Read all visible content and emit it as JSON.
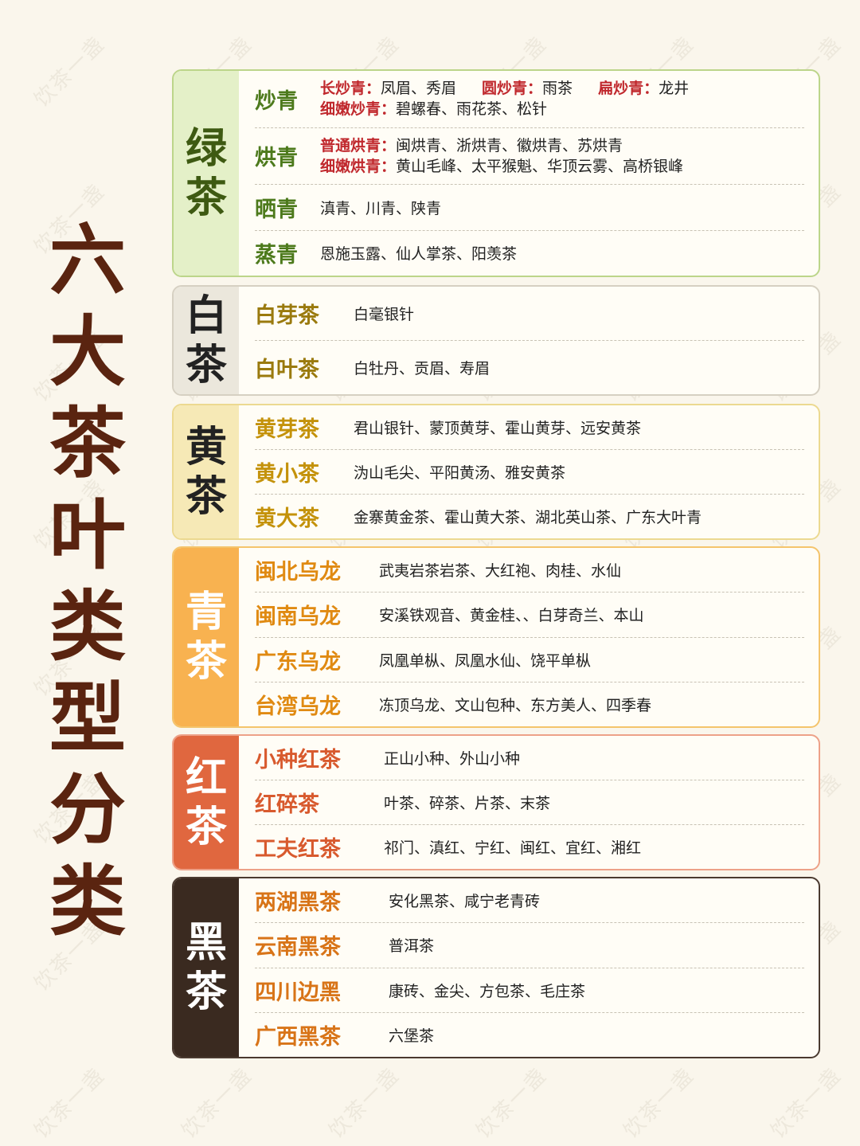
{
  "title": [
    "六",
    "大",
    "茶",
    "叶",
    "类",
    "型",
    "分",
    "类"
  ],
  "watermark": "饮茶一盏",
  "green": {
    "label": [
      "绿",
      "茶"
    ],
    "colors": {
      "border": "#bcd58a",
      "side": "#e4f0c8",
      "text": "#3e5a12",
      "name": "#4d7a1c"
    },
    "rows": [
      {
        "name": "炒青",
        "lines": [
          [
            {
              "l": "长炒青：",
              "t": "凤眉、秀眉"
            },
            {
              "l": "圆炒青：",
              "t": "雨茶"
            },
            {
              "l": "扁炒青：",
              "t": "龙井"
            }
          ],
          [
            {
              "l": "细嫩炒青：",
              "t": "碧螺春、雨花茶、松针"
            }
          ]
        ]
      },
      {
        "name": "烘青",
        "lines": [
          [
            {
              "l": "普通烘青：",
              "t": "闽烘青、浙烘青、徽烘青、苏烘青"
            }
          ],
          [
            {
              "l": "细嫩烘青：",
              "t": "黄山毛峰、太平猴魁、华顶云雾、高桥银峰"
            }
          ]
        ]
      },
      {
        "name": "晒青",
        "items": "滇青、川青、陕青"
      },
      {
        "name": "蒸青",
        "items": "恩施玉露、仙人掌茶、阳羡茶"
      }
    ]
  },
  "white": {
    "label": [
      "白",
      "茶"
    ],
    "colors": {
      "border": "#d6d0c2",
      "side": "#ebe7dc",
      "text": "#222222",
      "name": "#9a7a0e"
    },
    "rows": [
      {
        "name": "白芽茶",
        "items": "白毫银针"
      },
      {
        "name": "白叶茶",
        "items": "白牡丹、贡眉、寿眉"
      }
    ]
  },
  "yellow": {
    "label": [
      "黄",
      "茶"
    ],
    "colors": {
      "border": "#ecd990",
      "side": "#f6e9b6",
      "text": "#222222",
      "name": "#c4920a"
    },
    "rows": [
      {
        "name": "黄芽茶",
        "items": "君山银针、蒙顶黄芽、霍山黄芽、远安黄茶"
      },
      {
        "name": "黄小茶",
        "items": "沩山毛尖、平阳黄汤、雅安黄茶"
      },
      {
        "name": "黄大茶",
        "items": "金寨黄金茶、霍山黄大茶、湖北英山茶、广东大叶青"
      }
    ]
  },
  "oolong": {
    "label": [
      "青",
      "茶"
    ],
    "colors": {
      "border": "#f4c46c",
      "side": "#f8b250",
      "text": "#ffffff",
      "name": "#e08a12"
    },
    "rows": [
      {
        "name": "闽北乌龙",
        "items": "武夷岩茶岩茶、大红袍、肉桂、水仙"
      },
      {
        "name": "闽南乌龙",
        "items": "安溪铁观音、黄金桂、、白芽奇兰、本山"
      },
      {
        "name": "广东乌龙",
        "items": "凤凰单枞、凤凰水仙、饶平单枞"
      },
      {
        "name": "台湾乌龙",
        "items": "冻顶乌龙、文山包种、东方美人、四季春"
      }
    ]
  },
  "red": {
    "label": [
      "红",
      "茶"
    ],
    "colors": {
      "border": "#eda188",
      "side": "#e0673f",
      "text": "#ffffff",
      "name": "#d85a2e"
    },
    "rows": [
      {
        "name": "小种红茶",
        "items": "正山小种、外山小种"
      },
      {
        "name": "红碎茶",
        "items": "叶茶、碎茶、片茶、末茶"
      },
      {
        "name": "工夫红茶",
        "items": "祁门、滇红、宁红、闽红、宜红、湘红"
      }
    ]
  },
  "dark": {
    "label": [
      "黑",
      "茶"
    ],
    "colors": {
      "border": "#4a3a30",
      "side": "#3a2a20",
      "text": "#ffffff",
      "name": "#d87418"
    },
    "rows": [
      {
        "name": "两湖黑茶",
        "items": "安化黑茶、咸宁老青砖"
      },
      {
        "name": "云南黑茶",
        "items": "普洱茶"
      },
      {
        "name": "四川边黑",
        "items": "康砖、金尖、方包茶、毛庄茶"
      },
      {
        "name": "广西黑茶",
        "items": "六堡茶"
      }
    ]
  }
}
